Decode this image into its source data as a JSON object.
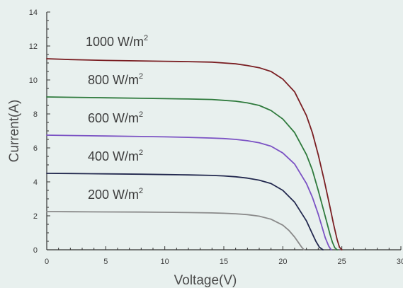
{
  "chart_data": {
    "type": "line",
    "title": "",
    "xlabel": "Voltage(V)",
    "ylabel": "Current(A)",
    "xlim": [
      0,
      30
    ],
    "ylim": [
      0,
      14
    ],
    "xticks": [
      0,
      5,
      10,
      15,
      20,
      25,
      30
    ],
    "yticks": [
      0,
      2,
      4,
      6,
      8,
      10,
      12,
      14
    ],
    "grid": false,
    "series": [
      {
        "name": "1000 W/m2",
        "label_text": "1000 W/m",
        "label_sup": "2",
        "color": "#7a1e22",
        "x": [
          0,
          2,
          5,
          8,
          10,
          12,
          14,
          15,
          16,
          17,
          18,
          19,
          20,
          21,
          22,
          22.5,
          23,
          23.5,
          24,
          24.3,
          24.6,
          24.8,
          25.0
        ],
        "y": [
          11.25,
          11.2,
          11.15,
          11.12,
          11.1,
          11.08,
          11.05,
          11.0,
          10.95,
          10.85,
          10.72,
          10.5,
          10.05,
          9.3,
          7.9,
          6.9,
          5.6,
          4.1,
          2.5,
          1.5,
          0.6,
          0.15,
          0.0
        ]
      },
      {
        "name": "800 W/m2",
        "label_text": "800 W/m",
        "label_sup": "2",
        "color": "#2e7a3c",
        "x": [
          0,
          2,
          5,
          8,
          10,
          12,
          14,
          15,
          16,
          17,
          18,
          19,
          20,
          21,
          22,
          22.5,
          23,
          23.5,
          24,
          24.2,
          24.4,
          24.6
        ],
        "y": [
          9.0,
          8.98,
          8.95,
          8.92,
          8.9,
          8.88,
          8.85,
          8.8,
          8.75,
          8.65,
          8.5,
          8.2,
          7.7,
          6.9,
          5.6,
          4.7,
          3.5,
          2.2,
          0.9,
          0.45,
          0.12,
          0.0
        ]
      },
      {
        "name": "600 W/m2",
        "label_text": "600 W/m",
        "label_sup": "2",
        "color": "#7b52c4",
        "x": [
          0,
          2,
          5,
          8,
          10,
          12,
          14,
          15,
          16,
          17,
          18,
          19,
          20,
          21,
          22,
          22.5,
          23,
          23.3,
          23.6,
          23.9,
          24.1
        ],
        "y": [
          6.75,
          6.73,
          6.7,
          6.67,
          6.65,
          6.62,
          6.58,
          6.55,
          6.5,
          6.42,
          6.3,
          6.1,
          5.7,
          5.05,
          3.9,
          3.1,
          2.1,
          1.4,
          0.7,
          0.2,
          0.0
        ]
      },
      {
        "name": "400 W/m2",
        "label_text": "400 W/m",
        "label_sup": "2",
        "color": "#22284e",
        "x": [
          0,
          2,
          5,
          8,
          10,
          12,
          14,
          15,
          16,
          17,
          18,
          19,
          20,
          21,
          22,
          22.4,
          22.8,
          23.1,
          23.4
        ],
        "y": [
          4.5,
          4.49,
          4.47,
          4.45,
          4.43,
          4.41,
          4.38,
          4.35,
          4.3,
          4.22,
          4.1,
          3.9,
          3.5,
          2.8,
          1.7,
          1.1,
          0.5,
          0.15,
          0.0
        ]
      },
      {
        "name": "200 W/m2",
        "label_text": "200 W/m",
        "label_sup": "2",
        "color": "#8a8a8a",
        "x": [
          0,
          2,
          5,
          8,
          10,
          12,
          14,
          15,
          16,
          17,
          18,
          19,
          20,
          20.5,
          21,
          21.3,
          21.6,
          21.8
        ],
        "y": [
          2.25,
          2.24,
          2.23,
          2.22,
          2.21,
          2.19,
          2.17,
          2.15,
          2.12,
          2.07,
          1.98,
          1.8,
          1.45,
          1.15,
          0.75,
          0.45,
          0.15,
          0.0
        ]
      }
    ]
  }
}
